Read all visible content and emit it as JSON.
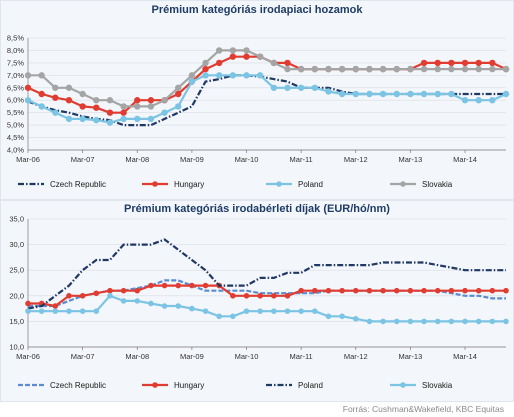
{
  "source": "Forrás: Cushman&Wakefield, KBC Equitas",
  "chart_data": [
    {
      "type": "line",
      "title": "Prémium kategóriás irodapiaci hozamok",
      "x_labels": [
        "Mar-06",
        "Mar-07",
        "Mar-08",
        "Mar-09",
        "Mar-10",
        "Mar-11",
        "Mar-12",
        "Mar-13",
        "Mar-14"
      ],
      "x_count": 36,
      "y_ticks": [
        "4,0%",
        "4,5%",
        "5,0%",
        "5,5%",
        "6,0%",
        "6,5%",
        "7,0%",
        "7,5%",
        "8,0%",
        "8,5%"
      ],
      "ylim": [
        4.0,
        8.5
      ],
      "series": [
        {
          "name": "Czech Republic",
          "color": "#1f3864",
          "style": "dashdot",
          "values": [
            5.95,
            5.75,
            5.6,
            5.5,
            5.35,
            5.25,
            5.2,
            5.0,
            5.0,
            5.0,
            5.25,
            5.5,
            5.75,
            6.75,
            6.85,
            7.0,
            7.0,
            6.95,
            6.85,
            6.75,
            6.5,
            6.5,
            6.5,
            6.35,
            6.25,
            6.25,
            6.25,
            6.25,
            6.25,
            6.25,
            6.25,
            6.25,
            6.25,
            6.25,
            6.25,
            6.25
          ]
        },
        {
          "name": "Hungary",
          "color": "#e03c31",
          "style": "solid",
          "values": [
            6.5,
            6.25,
            6.1,
            6.0,
            5.75,
            5.7,
            5.5,
            5.5,
            6.0,
            6.0,
            6.0,
            6.25,
            6.75,
            7.25,
            7.5,
            7.75,
            7.75,
            7.75,
            7.5,
            7.5,
            7.25,
            7.25,
            7.25,
            7.25,
            7.25,
            7.25,
            7.25,
            7.25,
            7.25,
            7.5,
            7.5,
            7.5,
            7.5,
            7.5,
            7.5,
            7.25
          ]
        },
        {
          "name": "Poland",
          "color": "#7cc4e4",
          "style": "solid",
          "values": [
            6.0,
            5.75,
            5.5,
            5.25,
            5.25,
            5.2,
            5.1,
            5.25,
            5.25,
            5.25,
            5.5,
            5.75,
            6.75,
            7.0,
            7.0,
            7.0,
            7.0,
            7.0,
            6.5,
            6.5,
            6.5,
            6.5,
            6.35,
            6.25,
            6.25,
            6.25,
            6.25,
            6.25,
            6.25,
            6.25,
            6.25,
            6.25,
            6.0,
            6.0,
            6.0,
            6.25
          ]
        },
        {
          "name": "Slovakia",
          "color": "#a5a5a5",
          "style": "solid",
          "values": [
            7.0,
            7.0,
            6.5,
            6.5,
            6.25,
            6.0,
            6.0,
            5.75,
            5.75,
            5.75,
            6.0,
            6.5,
            7.0,
            7.5,
            8.0,
            8.0,
            8.0,
            7.75,
            7.5,
            7.25,
            7.25,
            7.25,
            7.25,
            7.25,
            7.25,
            7.25,
            7.25,
            7.25,
            7.25,
            7.25,
            7.25,
            7.25,
            7.25,
            7.25,
            7.25,
            7.25
          ]
        }
      ]
    },
    {
      "type": "line",
      "title": "Prémium kategóriás irodabérleti díjak (EUR/hó/nm)",
      "x_labels": [
        "Mar-06",
        "Mar-07",
        "Mar-08",
        "Mar-09",
        "Mar-10",
        "Mar-11",
        "Mar-12",
        "Mar-13",
        "Mar-14"
      ],
      "x_count": 36,
      "y_ticks": [
        "10,0",
        "15,0",
        "20,0",
        "25,0",
        "30,0",
        "35,0"
      ],
      "ylim": [
        10,
        35
      ],
      "series": [
        {
          "name": "Czech Republic",
          "color": "#5b8bd0",
          "style": "dashed",
          "values": [
            18,
            18,
            18,
            19,
            20,
            20.5,
            21,
            21,
            21.5,
            22,
            23,
            23,
            22,
            21,
            21,
            21,
            21,
            20.5,
            20.5,
            20.5,
            20.5,
            20.5,
            21,
            21,
            21,
            21,
            21,
            21,
            21,
            21,
            21,
            20.5,
            20,
            20,
            19.5,
            19.5
          ]
        },
        {
          "name": "Hungary",
          "color": "#e03c31",
          "style": "solid",
          "values": [
            18.5,
            18.5,
            18,
            20,
            20,
            20.5,
            21,
            21,
            21,
            22,
            22,
            22,
            22,
            22,
            22,
            20,
            20,
            20,
            20,
            20,
            21,
            21,
            21,
            21,
            21,
            21,
            21,
            21,
            21,
            21,
            21,
            21,
            21,
            21,
            21,
            21
          ]
        },
        {
          "name": "Poland",
          "color": "#1f3864",
          "style": "dashdot",
          "values": [
            17.5,
            18,
            20,
            22,
            25,
            27,
            27,
            30,
            30,
            30,
            31,
            29,
            27,
            25,
            22,
            22,
            22,
            23.5,
            23.5,
            24.5,
            24.5,
            26,
            26,
            26,
            26,
            26,
            26.5,
            26.5,
            26.5,
            26.5,
            26,
            25.5,
            25,
            25,
            25,
            25
          ]
        },
        {
          "name": "Slovakia",
          "color": "#7cc4e4",
          "style": "solid",
          "values": [
            17,
            17,
            17,
            17,
            17,
            17,
            20,
            19,
            19,
            18.5,
            18,
            18,
            17.5,
            17,
            16,
            16,
            17,
            17,
            17,
            17,
            17,
            17,
            16,
            16,
            15.5,
            15,
            15,
            15,
            15,
            15,
            15,
            15,
            15,
            15,
            15,
            15
          ]
        }
      ]
    }
  ]
}
